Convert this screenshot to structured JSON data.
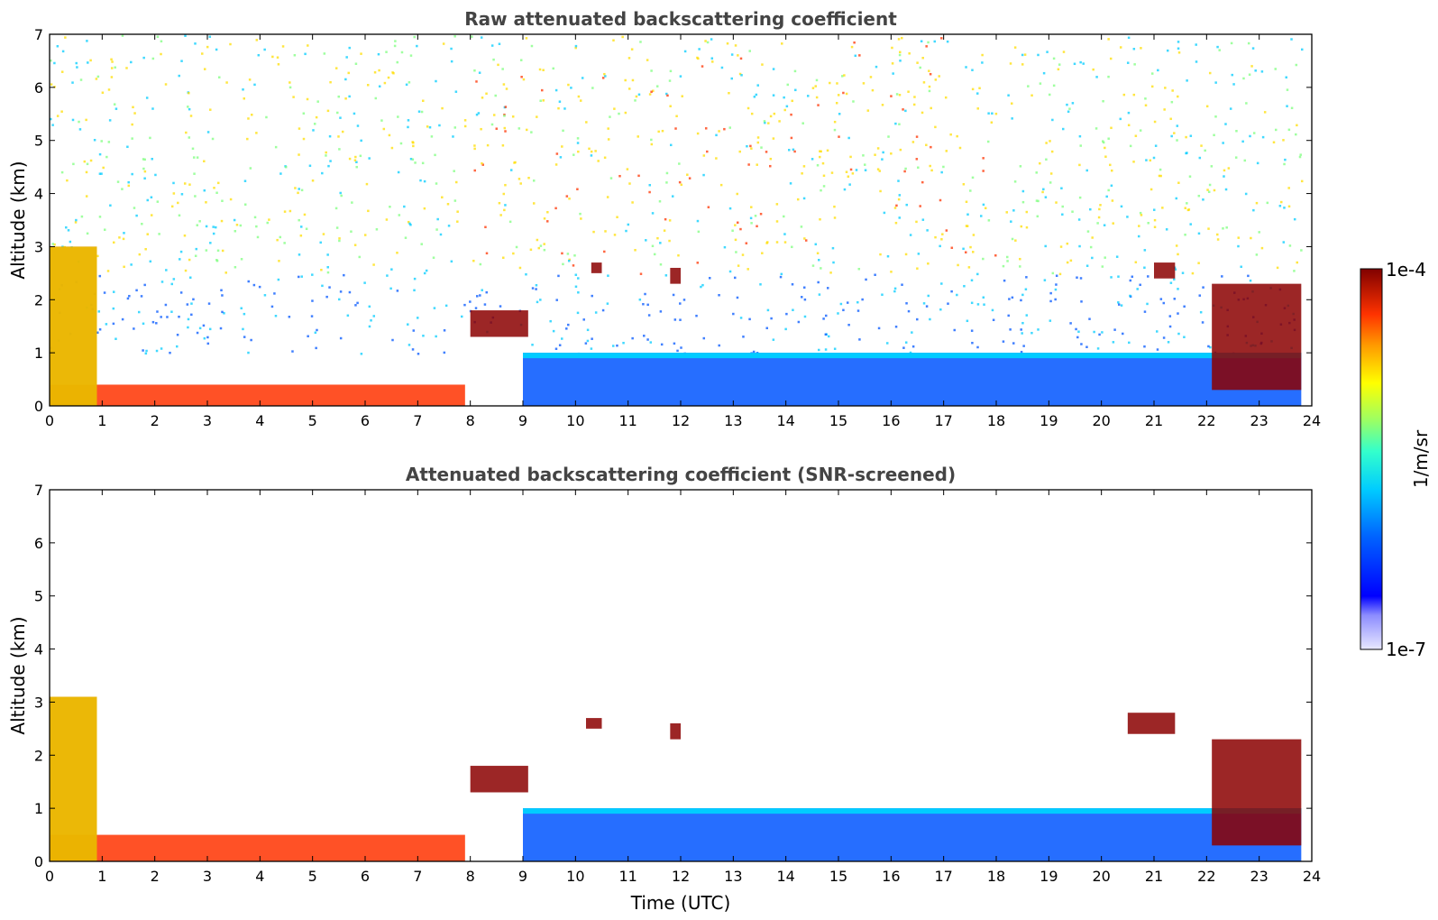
{
  "colorbar": {
    "max_label": "1e-4",
    "min_label": "1e-7",
    "unit_label": "1/m/sr",
    "colormap": "jet",
    "scale": "log"
  },
  "colors": {
    "very_high": "#8b0000",
    "high": "#ff3300",
    "mid_high": "#ffdd00",
    "mid": "#7fff7f",
    "mid_low": "#00ccff",
    "low": "#0055ff",
    "very_low": "#ccccff",
    "no_data": "#ffffff"
  },
  "chart_data": [
    {
      "type": "heatmap",
      "title": "Raw attenuated backscattering coefficient",
      "xlabel": "",
      "ylabel": "Altitude (km)",
      "xlim": [
        0,
        24
      ],
      "ylim": [
        0,
        7
      ],
      "xticks": [
        0,
        1,
        2,
        3,
        4,
        5,
        6,
        7,
        8,
        9,
        10,
        11,
        12,
        13,
        14,
        15,
        16,
        17,
        18,
        19,
        20,
        21,
        22,
        23,
        24
      ],
      "yticks": [
        0,
        1,
        2,
        3,
        4,
        5,
        6,
        7
      ],
      "data_end_time": 23.8,
      "features": [
        {
          "kind": "aerosol_layer",
          "time": [
            0,
            7.9
          ],
          "top_km": 0.4
        },
        {
          "kind": "cloud",
          "time": [
            0,
            0.9
          ],
          "top_km": 3.0
        },
        {
          "kind": "cloud",
          "time": [
            8.0,
            9.1
          ],
          "base_km": 1.3,
          "top_km": 1.8
        },
        {
          "kind": "cloud",
          "time": [
            10.3,
            10.5
          ],
          "base_km": 2.5,
          "top_km": 2.7
        },
        {
          "kind": "cloud",
          "time": [
            11.8,
            12.0
          ],
          "base_km": 2.3,
          "top_km": 2.6
        },
        {
          "kind": "boundary_layer",
          "time": [
            9.0,
            23.8
          ],
          "top_km": 1.0
        },
        {
          "kind": "cloud",
          "time": [
            21.0,
            21.4
          ],
          "base_km": 2.4,
          "top_km": 2.7
        },
        {
          "kind": "cloud",
          "time": [
            22.1,
            23.8
          ],
          "base_km": 0.3,
          "top_km": 2.3
        }
      ],
      "noise": "high-altitude signal noise increasing with daylight hours 8–18 UTC"
    },
    {
      "type": "heatmap",
      "title": "Attenuated backscattering coefficient (SNR-screened)",
      "xlabel": "Time (UTC)",
      "ylabel": "Altitude (km)",
      "xlim": [
        0,
        24
      ],
      "ylim": [
        0,
        7
      ],
      "xticks": [
        0,
        1,
        2,
        3,
        4,
        5,
        6,
        7,
        8,
        9,
        10,
        11,
        12,
        13,
        14,
        15,
        16,
        17,
        18,
        19,
        20,
        21,
        22,
        23,
        24
      ],
      "yticks": [
        0,
        1,
        2,
        3,
        4,
        5,
        6,
        7
      ],
      "data_end_time": 23.8,
      "features": [
        {
          "kind": "aerosol_layer",
          "time": [
            0,
            7.9
          ],
          "top_km": 0.5
        },
        {
          "kind": "cloud",
          "time": [
            0,
            0.9
          ],
          "top_km": 3.1
        },
        {
          "kind": "cloud",
          "time": [
            8.0,
            9.1
          ],
          "base_km": 1.3,
          "top_km": 1.8
        },
        {
          "kind": "cloud",
          "time": [
            10.2,
            10.5
          ],
          "base_km": 2.5,
          "top_km": 2.7
        },
        {
          "kind": "cloud",
          "time": [
            11.8,
            12.0
          ],
          "base_km": 2.3,
          "top_km": 2.6
        },
        {
          "kind": "boundary_layer",
          "time": [
            9.0,
            23.8
          ],
          "top_km": 1.0
        },
        {
          "kind": "cloud",
          "time": [
            20.5,
            21.4
          ],
          "base_km": 2.4,
          "top_km": 2.8
        },
        {
          "kind": "cloud",
          "time": [
            22.1,
            23.8
          ],
          "base_km": 0.3,
          "top_km": 2.3
        }
      ],
      "noise": "screened: noise removed, white above detectable signal"
    }
  ]
}
